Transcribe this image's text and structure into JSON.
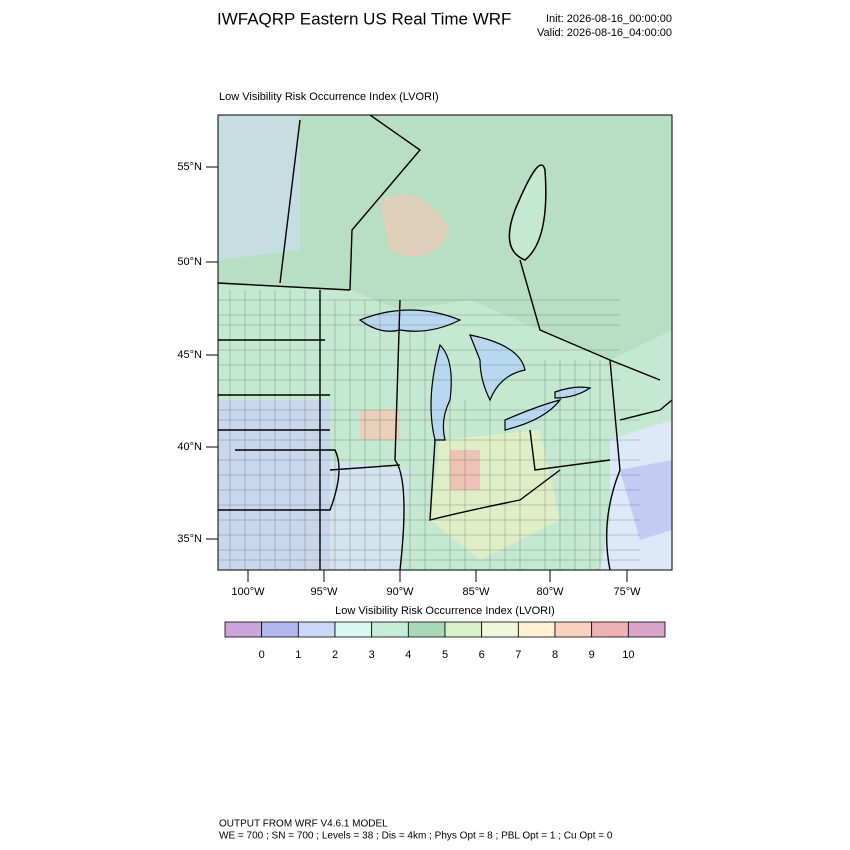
{
  "header": {
    "title": "IWFAQRP Eastern US Real Time WRF",
    "init": "Init: 2026-08-16_00:00:00",
    "valid": "Valid: 2026-08-16_04:00:00"
  },
  "map": {
    "title": "Low Visibility Risk Occurrence Index   (LVORI)",
    "lat_labels": [
      "55°N",
      "50°N",
      "45°N",
      "40°N",
      "35°N"
    ],
    "lon_labels": [
      "100°W",
      "95°W",
      "90°W",
      "85°W",
      "80°W",
      "75°W"
    ]
  },
  "colorbar": {
    "title": "Low Visibility Risk Occurrence Index  (LVORI)",
    "labels": [
      "0",
      "1",
      "2",
      "3",
      "4",
      "5",
      "6",
      "7",
      "8",
      "9",
      "10"
    ],
    "colors": [
      "#cba6dc",
      "#b2b8ee",
      "#c9d8f8",
      "#d9f8ef",
      "#c6ebd6",
      "#a9d8b9",
      "#d9f1c9",
      "#f1f8d9",
      "#fdf0d3",
      "#f8d1c1",
      "#efb2b2",
      "#d9a3ca"
    ]
  },
  "footer": {
    "lines": [
      "OUTPUT FROM WRF V4.6.1 MODEL",
      "WE = 700 ; SN = 700 ; Levels = 38 ; Dis = 4km ; Phys Opt = 8 ; PBL Opt = 1 ; Cu Opt = 0"
    ]
  }
}
